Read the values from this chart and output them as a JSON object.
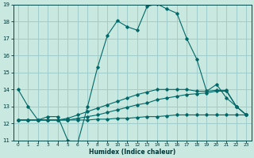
{
  "title": "",
  "xlabel": "Humidex (Indice chaleur)",
  "bg_color": "#c8e8e0",
  "grid_color": "#a0cccc",
  "line_color": "#006868",
  "xlim": [
    -0.5,
    23.5
  ],
  "ylim": [
    11,
    19
  ],
  "xticks": [
    0,
    1,
    2,
    3,
    4,
    5,
    6,
    7,
    8,
    9,
    10,
    11,
    12,
    13,
    14,
    15,
    16,
    17,
    18,
    19,
    20,
    21,
    22,
    23
  ],
  "yticks": [
    11,
    12,
    13,
    14,
    15,
    16,
    17,
    18,
    19
  ],
  "main_x": [
    0,
    1,
    2,
    3,
    4,
    5,
    6,
    7,
    8,
    9,
    10,
    11,
    12,
    13,
    14,
    15,
    16,
    17,
    18,
    19,
    20,
    21,
    22,
    23
  ],
  "main_y": [
    14.0,
    13.0,
    12.2,
    12.4,
    12.4,
    11.0,
    10.85,
    13.0,
    15.3,
    17.2,
    18.05,
    17.7,
    17.5,
    18.9,
    19.05,
    18.75,
    18.5,
    17.0,
    15.8,
    13.9,
    14.3,
    13.5,
    13.0,
    12.5
  ],
  "line_flat_x": [
    0,
    1,
    2,
    3,
    4,
    5,
    6,
    7,
    8,
    9,
    10,
    11,
    12,
    13,
    14,
    15,
    16,
    17,
    18,
    19,
    20,
    21,
    22,
    23
  ],
  "line_flat_y": [
    12.2,
    12.2,
    12.2,
    12.2,
    12.2,
    12.2,
    12.2,
    12.2,
    12.25,
    12.25,
    12.3,
    12.3,
    12.35,
    12.4,
    12.4,
    12.45,
    12.5,
    12.5,
    12.5,
    12.5,
    12.5,
    12.5,
    12.5,
    12.5
  ],
  "line_mid_x": [
    0,
    1,
    2,
    3,
    4,
    5,
    6,
    7,
    8,
    9,
    10,
    11,
    12,
    13,
    14,
    15,
    16,
    17,
    18,
    19,
    20,
    21,
    22,
    23
  ],
  "line_mid_y": [
    12.2,
    12.2,
    12.2,
    12.2,
    12.2,
    12.2,
    12.3,
    12.4,
    12.5,
    12.65,
    12.8,
    12.95,
    13.1,
    13.2,
    13.4,
    13.5,
    13.6,
    13.7,
    13.75,
    13.8,
    13.9,
    13.9,
    13.0,
    12.5
  ],
  "line_top_x": [
    0,
    1,
    2,
    3,
    4,
    5,
    6,
    7,
    8,
    9,
    10,
    11,
    12,
    13,
    14,
    15,
    16,
    17,
    18,
    19,
    20,
    21,
    22,
    23
  ],
  "line_top_y": [
    12.2,
    12.2,
    12.2,
    12.2,
    12.2,
    12.3,
    12.5,
    12.7,
    12.9,
    13.1,
    13.3,
    13.5,
    13.7,
    13.85,
    14.0,
    14.0,
    14.0,
    14.0,
    13.9,
    13.9,
    13.95,
    13.95,
    13.0,
    12.5
  ]
}
